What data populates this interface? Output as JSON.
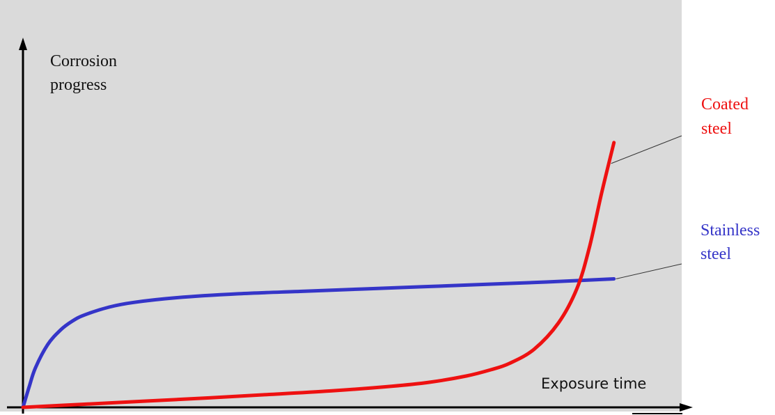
{
  "chart_data": {
    "type": "line",
    "title": "",
    "ylabel": [
      "Corrosion",
      "progress"
    ],
    "xlabel": "Exposure time",
    "x": [
      0,
      1,
      2,
      4,
      6,
      8,
      10,
      14,
      18,
      25,
      35,
      45,
      55,
      65,
      75,
      85,
      96
    ],
    "series": [
      {
        "name": [
          "Stainless",
          "steel"
        ],
        "color": "#3535c8",
        "values": [
          0,
          13,
          25,
          40,
          49,
          55,
          59,
          64,
          67,
          70,
          72.5,
          74,
          75.5,
          77,
          78.5,
          80,
          82
        ]
      },
      {
        "name": [
          "Coated",
          "steel"
        ],
        "color": "#ee1111",
        "x": [
          0,
          10,
          20,
          30,
          40,
          50,
          60,
          66,
          72,
          76,
          79,
          83,
          87,
          90,
          92,
          94,
          96
        ],
        "values": [
          0,
          2,
          4,
          6,
          8.2,
          10.5,
          13.5,
          16,
          20,
          24,
          28,
          37,
          54,
          76,
          102,
          137,
          169
        ]
      }
    ],
    "xlim": [
      0,
      107
    ],
    "ylim": [
      0,
      260
    ],
    "grid": false,
    "legend": "right"
  }
}
